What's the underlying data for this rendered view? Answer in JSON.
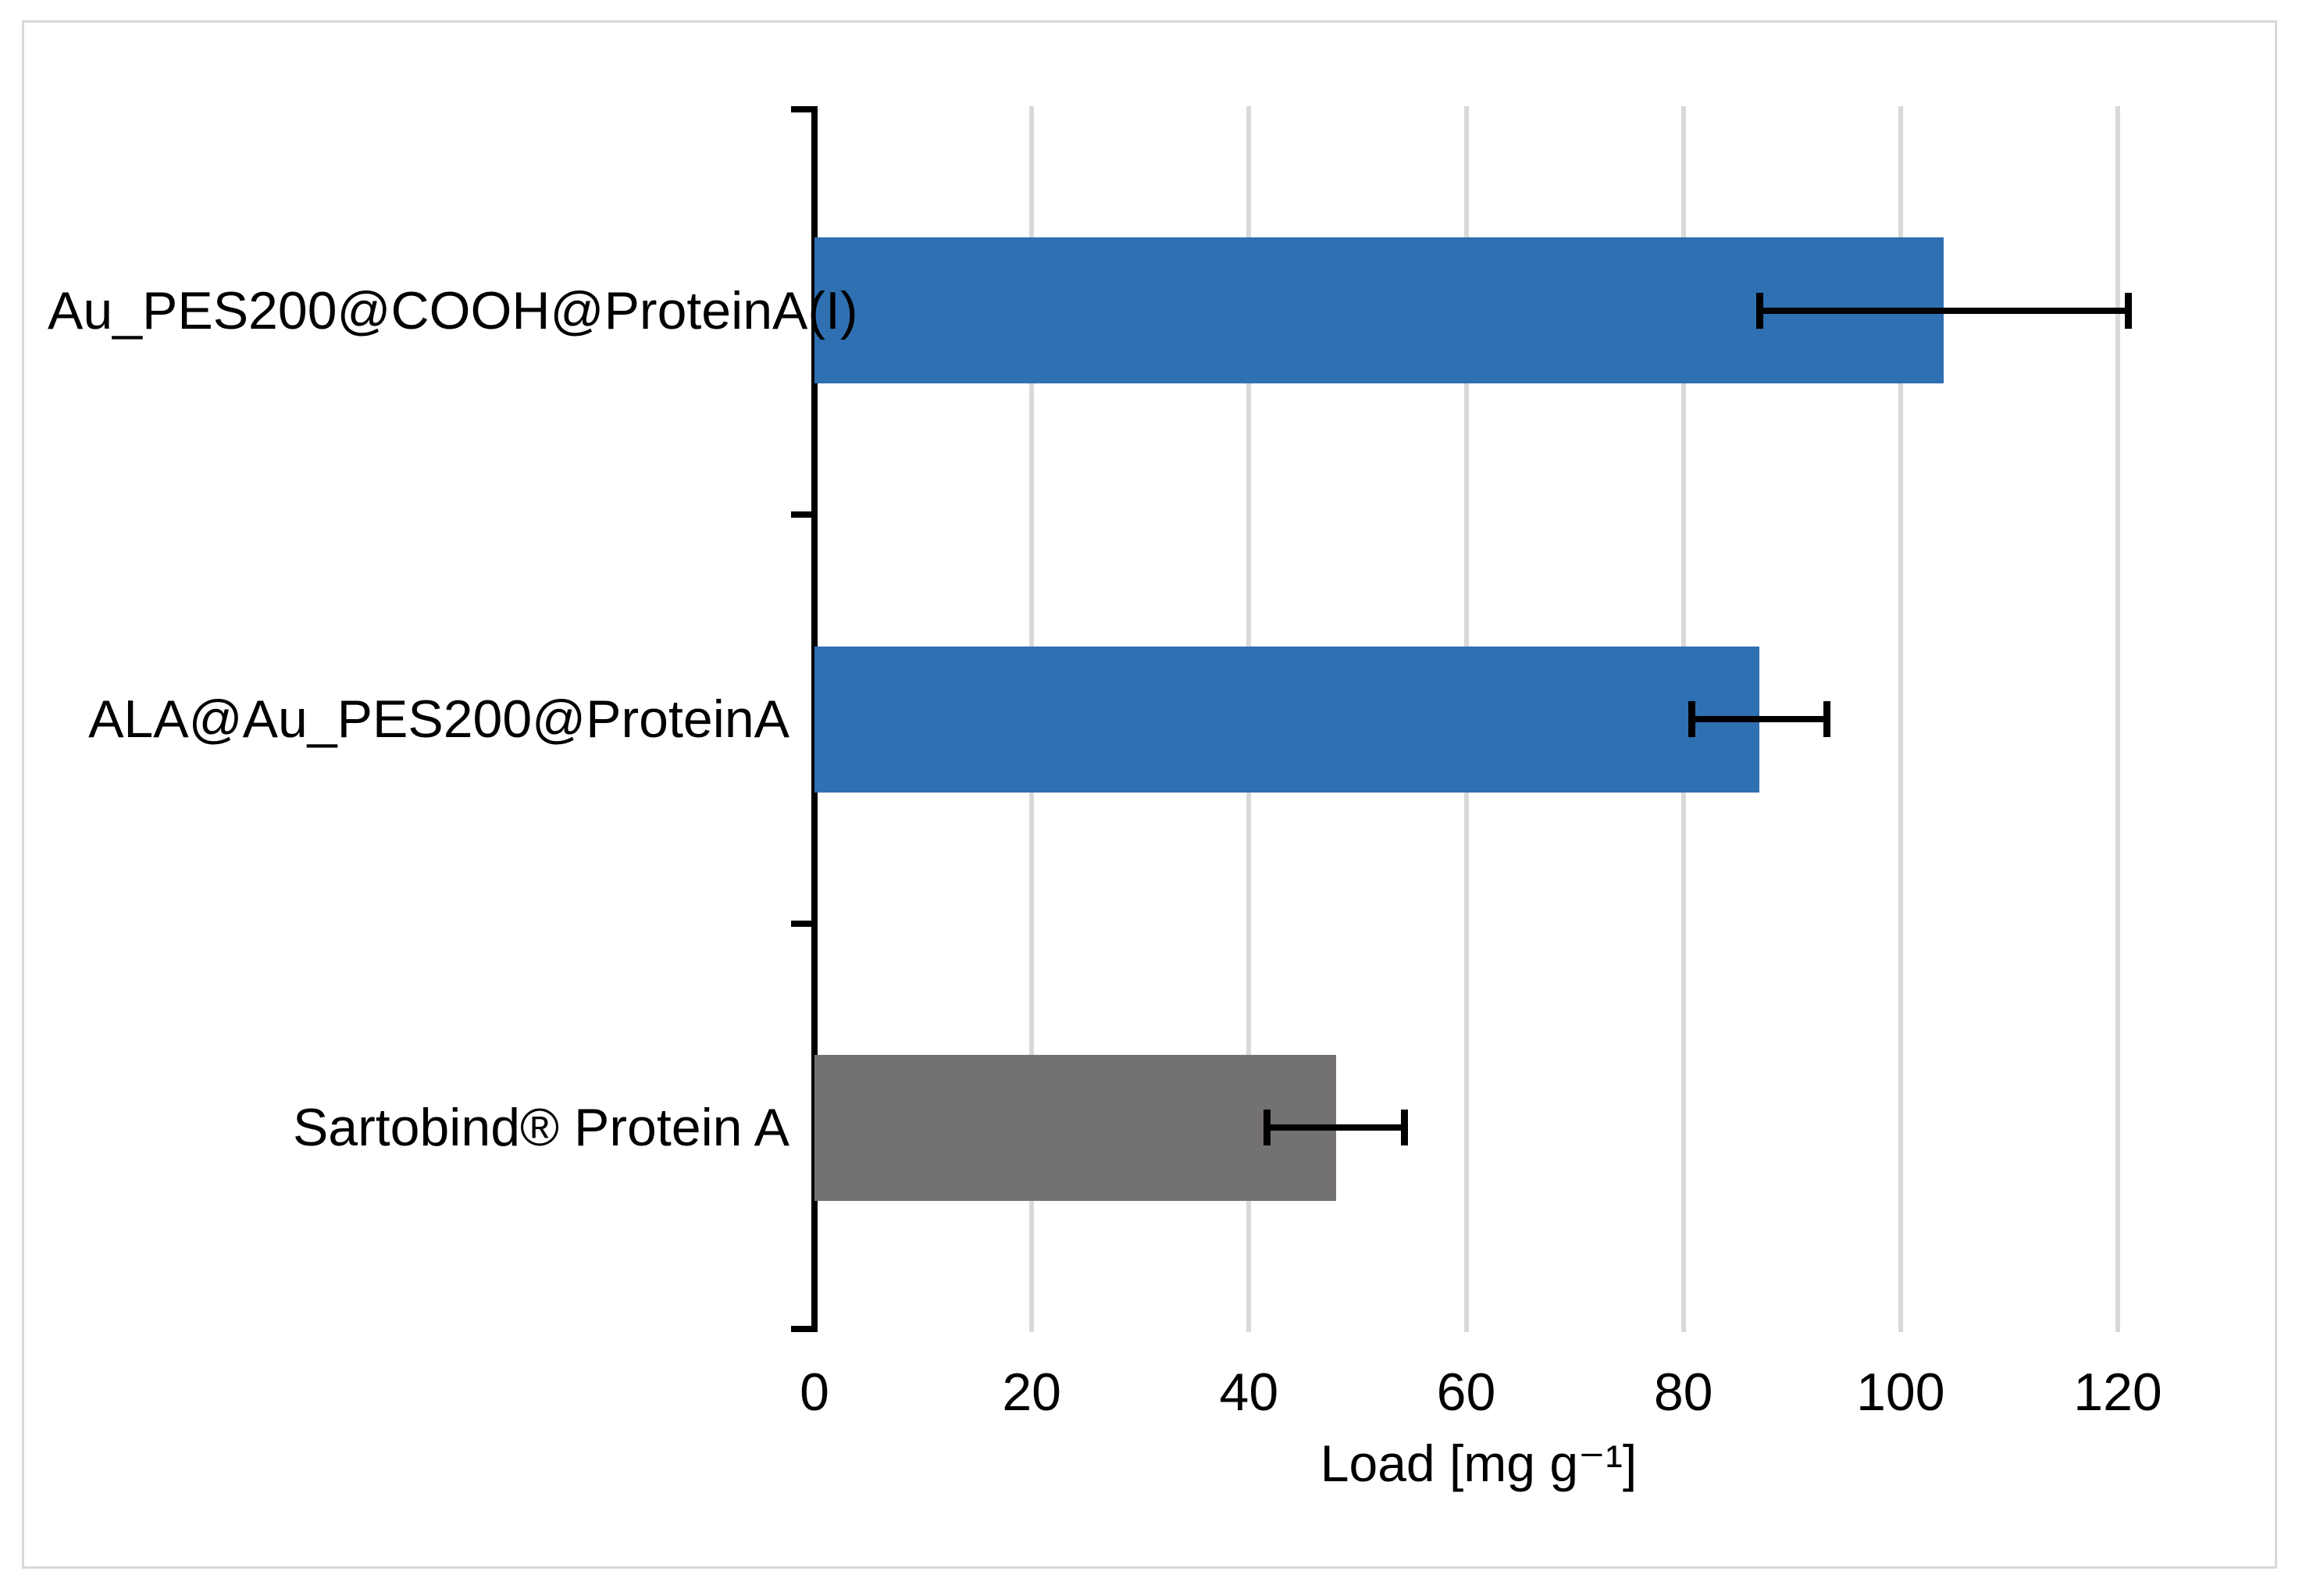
{
  "figure": {
    "background": "#FFFFFF",
    "border_color": "#D9D9D9"
  },
  "chart_data": {
    "type": "bar",
    "orientation": "horizontal",
    "title": "",
    "xlabel": "Load [mg g⁻¹]",
    "ylabel": "",
    "categories": [
      "Au_PES200@COOH@ProteinA(I)",
      "ALA@Au_PES200@ProteinA",
      "Sartobind® Protein A"
    ],
    "series": [
      {
        "name": "Load",
        "values": [
          104,
          87,
          48
        ],
        "errors_minus": [
          17,
          6.2,
          6.3
        ],
        "errors_plus": [
          17,
          6.2,
          6.3
        ],
        "bar_colors": [
          "#2F70B2",
          "#2F70B2",
          "#747171"
        ]
      }
    ],
    "xlim": [
      0,
      120
    ],
    "x_ticks": [
      0,
      20,
      40,
      60,
      80,
      100,
      120
    ],
    "grid": "vertical-only",
    "gridline_color": "#D9D9D9",
    "axis_color": "#000000",
    "error_bar_color": "#000000",
    "legend_position": "none",
    "plot_background": "#FFFFFF"
  }
}
